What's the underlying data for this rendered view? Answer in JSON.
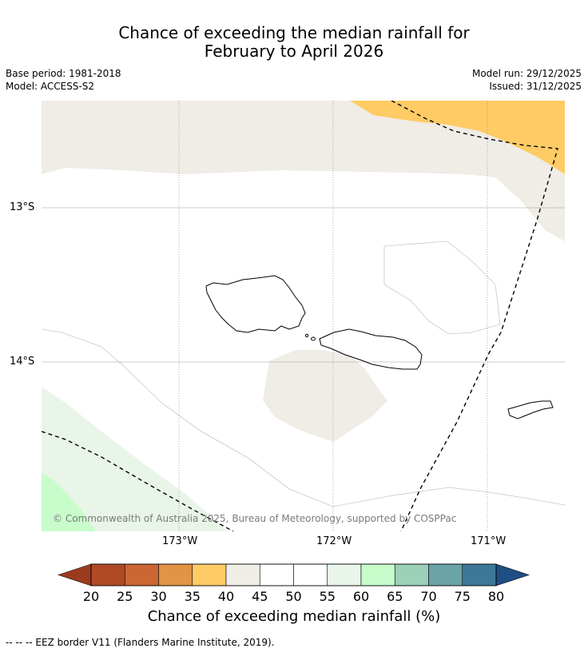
{
  "title": {
    "line1": "Chance of exceeding the median rainfall for",
    "line2": "February to April 2026"
  },
  "metadata": {
    "base_period": "Base period: 1981-2018",
    "model": "Model: ACCESS-S2",
    "model_run": "Model run: 29/12/2025",
    "issued": "Issued: 31/12/2025"
  },
  "map": {
    "latitude_labels": [
      "13°S",
      "14°S"
    ],
    "longitude_labels": [
      "173°W",
      "172°W",
      "171°W"
    ],
    "copyright": "© Commonwealth of Australia 2025, Bureau of Meteorology, supported by COSPPac"
  },
  "colorbar": {
    "ticks": [
      "20",
      "25",
      "30",
      "35",
      "40",
      "45",
      "50",
      "55",
      "60",
      "65",
      "70",
      "75",
      "80"
    ],
    "colors": [
      "#b04a26",
      "#cc6632",
      "#e09444",
      "#fecb64",
      "#f0ece6",
      "#ffffff",
      "#ffffff",
      "#e9f5e8",
      "#c8fccb",
      "#9cd0b8",
      "#6ba4a8",
      "#3e7899"
    ],
    "below_color": "#9c3a1e",
    "above_color": "#1f4e85",
    "label": "Chance of exceeding median rainfall (%)"
  },
  "footer": "--  --  -- EEZ border V11 (Flanders Marine Institute, 2019)."
}
